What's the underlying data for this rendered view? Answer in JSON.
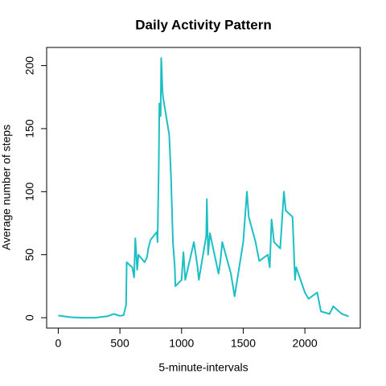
{
  "chart_data": {
    "type": "line",
    "title": "Daily Activity Pattern",
    "x_label": "5-minute-intervals",
    "y_label": "Average number of steps",
    "color": "#1bbfc4",
    "x": [
      0,
      100,
      200,
      300,
      400,
      450,
      500,
      530,
      550,
      555,
      600,
      615,
      625,
      640,
      650,
      700,
      720,
      730,
      750,
      800,
      805,
      815,
      820,
      830,
      835,
      840,
      845,
      850,
      900,
      915,
      930,
      945,
      950,
      1000,
      1015,
      1030,
      1100,
      1130,
      1140,
      1200,
      1205,
      1215,
      1230,
      1300,
      1315,
      1330,
      1400,
      1430,
      1500,
      1530,
      1545,
      1600,
      1630,
      1700,
      1715,
      1730,
      1750,
      1800,
      1830,
      1845,
      1900,
      1920,
      1930,
      2000,
      2030,
      2100,
      2130,
      2200,
      2230,
      2300,
      2330,
      2355
    ],
    "values": [
      1.7,
      0.4,
      0,
      0,
      1.2,
      3,
      1.5,
      2,
      10,
      44,
      40,
      32,
      63,
      38,
      50,
      44,
      48,
      55,
      62,
      68,
      60,
      120,
      170,
      160,
      206,
      195,
      180,
      175,
      145,
      110,
      60,
      40,
      25,
      30,
      52,
      30,
      60,
      40,
      30,
      65,
      94,
      50,
      67,
      35,
      45,
      60,
      35,
      17,
      60,
      100,
      80,
      60,
      45,
      50,
      40,
      78,
      60,
      55,
      100,
      85,
      80,
      30,
      40,
      20,
      15,
      20,
      5,
      3,
      9,
      3,
      2,
      1
    ],
    "xlim": [
      -94.2,
      2449.2
    ],
    "ylim": [
      -8.24,
      214.4
    ],
    "xticks": [
      0,
      500,
      1000,
      1500,
      2000
    ],
    "yticks": [
      0,
      50,
      100,
      150,
      200
    ]
  }
}
